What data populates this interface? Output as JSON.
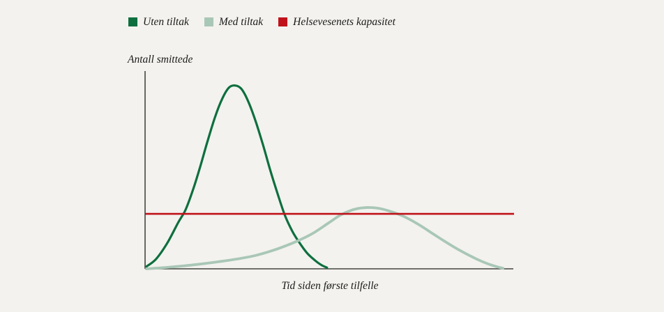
{
  "figure": {
    "background": "#f3f2ef"
  },
  "chart_data": {
    "type": "line",
    "xlabel": "Tid siden første tilfelle",
    "ylabel": "Antall smittede",
    "x_range": [
      0,
      1
    ],
    "y_range": [
      0,
      1
    ],
    "grid": false,
    "legend_position": "top",
    "axis_color": "#45453f",
    "axis_width": 1.6,
    "series": [
      {
        "name": "Uten tiltak",
        "kind": "curve",
        "color": "#0e6f3e",
        "stroke_width": 3.2,
        "points": [
          [
            0.004,
            0.012
          ],
          [
            0.03,
            0.05
          ],
          [
            0.06,
            0.13
          ],
          [
            0.09,
            0.235
          ],
          [
            0.11,
            0.3
          ],
          [
            0.13,
            0.4
          ],
          [
            0.15,
            0.52
          ],
          [
            0.17,
            0.65
          ],
          [
            0.19,
            0.77
          ],
          [
            0.21,
            0.865
          ],
          [
            0.228,
            0.92
          ],
          [
            0.245,
            0.93
          ],
          [
            0.262,
            0.912
          ],
          [
            0.28,
            0.85
          ],
          [
            0.3,
            0.75
          ],
          [
            0.32,
            0.63
          ],
          [
            0.34,
            0.5
          ],
          [
            0.36,
            0.38
          ],
          [
            0.38,
            0.27
          ],
          [
            0.4,
            0.19
          ],
          [
            0.42,
            0.13
          ],
          [
            0.44,
            0.08
          ],
          [
            0.46,
            0.045
          ],
          [
            0.478,
            0.02
          ],
          [
            0.494,
            0.006
          ]
        ]
      },
      {
        "name": "Med tiltak",
        "kind": "curve",
        "color": "#a9c7b6",
        "stroke_width": 3.8,
        "points": [
          [
            0.004,
            0.0
          ],
          [
            0.05,
            0.006
          ],
          [
            0.1,
            0.014
          ],
          [
            0.15,
            0.024
          ],
          [
            0.2,
            0.036
          ],
          [
            0.25,
            0.05
          ],
          [
            0.3,
            0.068
          ],
          [
            0.35,
            0.095
          ],
          [
            0.4,
            0.13
          ],
          [
            0.43,
            0.155
          ],
          [
            0.46,
            0.185
          ],
          [
            0.5,
            0.235
          ],
          [
            0.53,
            0.272
          ],
          [
            0.56,
            0.297
          ],
          [
            0.585,
            0.308
          ],
          [
            0.61,
            0.311
          ],
          [
            0.64,
            0.305
          ],
          [
            0.67,
            0.289
          ],
          [
            0.7,
            0.268
          ],
          [
            0.74,
            0.228
          ],
          [
            0.78,
            0.18
          ],
          [
            0.82,
            0.132
          ],
          [
            0.86,
            0.088
          ],
          [
            0.9,
            0.05
          ],
          [
            0.93,
            0.026
          ],
          [
            0.955,
            0.011
          ],
          [
            0.972,
            0.003
          ]
        ]
      },
      {
        "name": "Helsevesenets kapasitet",
        "kind": "hline",
        "color": "#c0121a",
        "stroke_width": 2.6,
        "value": 0.279
      }
    ]
  }
}
